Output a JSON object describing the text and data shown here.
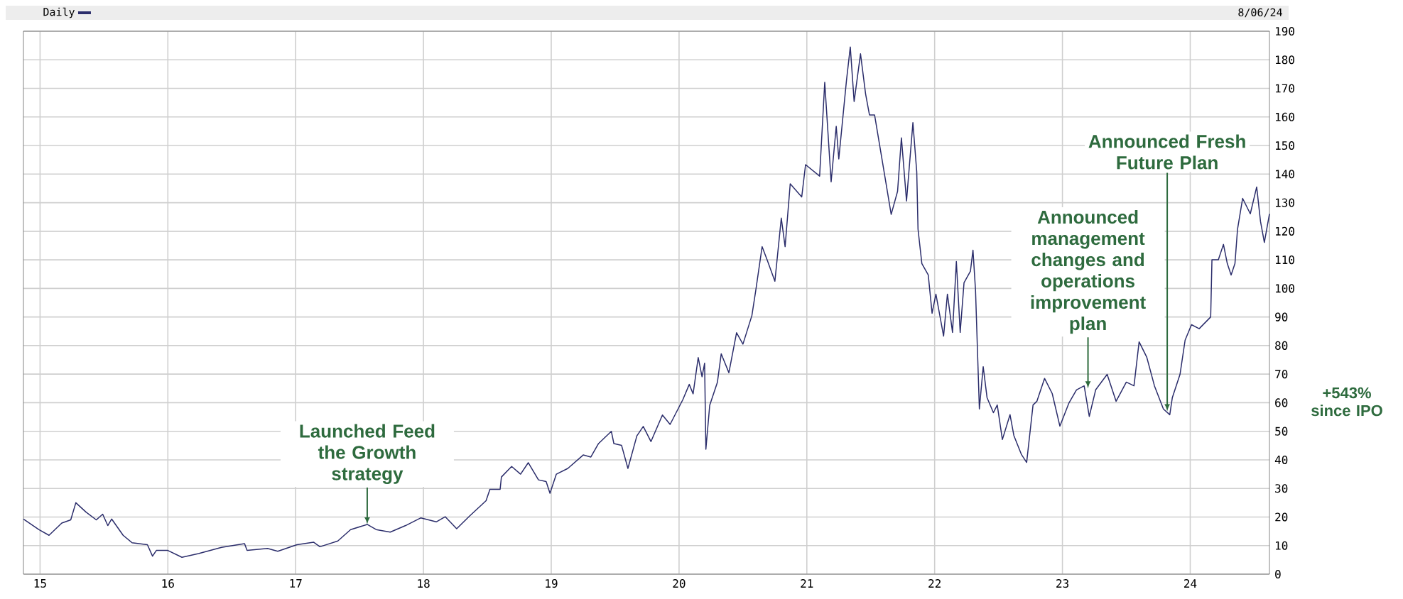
{
  "chart_data": {
    "type": "line",
    "title": "Daily",
    "annotations": [
      {
        "text": "Launched Feed the Growth strategy",
        "x": 2017.56,
        "y": 17.4
      },
      {
        "text": "Announced management changes and operations improvement plan",
        "x": 2023.2,
        "y": 65
      },
      {
        "text": "Announced Fresh Future Plan",
        "x": 2023.82,
        "y": 57
      },
      "+543% since IPO",
      "8/06/24"
    ],
    "x": [
      2014.87,
      2014.99,
      2015.07,
      2015.17,
      2015.24,
      2015.28,
      2015.36,
      2015.44,
      2015.49,
      2015.53,
      2015.56,
      2015.65,
      2015.72,
      2015.84,
      2015.88,
      2015.91,
      2016.0,
      2016.11,
      2016.24,
      2016.42,
      2016.6,
      2016.62,
      2016.78,
      2016.86,
      2017.01,
      2017.14,
      2017.19,
      2017.33,
      2017.43,
      2017.56,
      2017.63,
      2017.74,
      2017.86,
      2017.98,
      2018.1,
      2018.17,
      2018.26,
      2018.36,
      2018.49,
      2018.52,
      2018.6,
      2018.61,
      2018.69,
      2018.76,
      2018.82,
      2018.9,
      2018.96,
      2018.99,
      2019.04,
      2019.13,
      2019.25,
      2019.31,
      2019.37,
      2019.47,
      2019.49,
      2019.55,
      2019.6,
      2019.67,
      2019.72,
      2019.78,
      2019.87,
      2019.93,
      2020.03,
      2020.08,
      2020.11,
      2020.15,
      2020.18,
      2020.2,
      2020.21,
      2020.24,
      2020.3,
      2020.33,
      2020.39,
      2020.45,
      2020.5,
      2020.57,
      2020.6,
      2020.65,
      2020.69,
      2020.75,
      2020.8,
      2020.83,
      2020.87,
      2020.96,
      2020.99,
      2021.1,
      2021.14,
      2021.19,
      2021.23,
      2021.25,
      2021.31,
      2021.34,
      2021.37,
      2021.42,
      2021.46,
      2021.49,
      2021.53,
      2021.59,
      2021.66,
      2021.71,
      2021.74,
      2021.78,
      2021.83,
      2021.86,
      2021.87,
      2021.9,
      2021.95,
      2021.98,
      2022.01,
      2022.07,
      2022.1,
      2022.14,
      2022.17,
      2022.2,
      2022.23,
      2022.28,
      2022.3,
      2022.32,
      2022.35,
      2022.38,
      2022.41,
      2022.46,
      2022.49,
      2022.53,
      2022.59,
      2022.62,
      2022.68,
      2022.72,
      2022.77,
      2022.8,
      2022.86,
      2022.92,
      2022.98,
      2023.05,
      2023.11,
      2023.17,
      2023.21,
      2023.26,
      2023.35,
      2023.42,
      2023.5,
      2023.56,
      2023.6,
      2023.66,
      2023.72,
      2023.79,
      2023.84,
      2023.86,
      2023.92,
      2023.96,
      2024.01,
      2024.07,
      2024.16,
      2024.17,
      2024.22,
      2024.26,
      2024.29,
      2024.32,
      2024.35,
      2024.37,
      2024.41,
      2024.47,
      2024.52,
      2024.55,
      2024.58,
      2024.62
    ],
    "series": [
      {
        "color": "#2b2d6b",
        "values": [
          19.3,
          15.6,
          13.6,
          17.9,
          19.0,
          25.0,
          21.7,
          19.0,
          21.0,
          17.0,
          19.3,
          13.6,
          11.0,
          10.3,
          6.3,
          8.3,
          8.3,
          5.9,
          7.2,
          9.4,
          10.7,
          8.3,
          9.0,
          8.0,
          10.3,
          11.2,
          9.6,
          11.6,
          15.6,
          17.4,
          15.6,
          14.7,
          17.0,
          19.7,
          18.3,
          20.1,
          15.9,
          20.3,
          25.7,
          29.7,
          29.7,
          34.0,
          37.7,
          35.0,
          39.0,
          33.0,
          32.4,
          28.3,
          35.0,
          37.0,
          41.7,
          41.0,
          45.7,
          50.0,
          45.7,
          45.1,
          37.0,
          48.4,
          51.7,
          46.4,
          55.7,
          52.4,
          61.1,
          66.4,
          63.1,
          75.8,
          69.1,
          73.8,
          43.7,
          59.1,
          67.1,
          77.1,
          70.5,
          84.5,
          80.5,
          90.5,
          99.2,
          114.6,
          109.9,
          102.5,
          124.6,
          114.6,
          136.6,
          132.0,
          143.3,
          139.3,
          172.1,
          137.3,
          156.7,
          145.3,
          172.7,
          184.5,
          165.4,
          182.1,
          168.0,
          160.7,
          160.7,
          144.7,
          125.9,
          134.0,
          152.7,
          130.6,
          158.0,
          140.8,
          120.7,
          108.7,
          104.7,
          91.3,
          98.0,
          83.3,
          98.0,
          84.6,
          109.4,
          84.6,
          102.0,
          106.0,
          113.4,
          99.3,
          57.8,
          72.6,
          61.8,
          56.5,
          59.2,
          47.1,
          55.8,
          48.5,
          41.8,
          39.1,
          59.2,
          60.5,
          68.5,
          63.2,
          51.8,
          59.8,
          64.5,
          65.9,
          55.2,
          64.5,
          69.9,
          60.5,
          67.2,
          65.9,
          81.3,
          75.9,
          65.9,
          57.8,
          55.8,
          61.8,
          69.9,
          81.9,
          87.3,
          85.9,
          90.0,
          110.0,
          110.0,
          115.4,
          108.7,
          104.7,
          108.7,
          120.7,
          131.5,
          126.1,
          135.5,
          123.4,
          116.1,
          126.1
        ]
      }
    ],
    "xlim": [
      2014.87,
      2024.62
    ],
    "xticks": [
      {
        "value": 2015,
        "label": "15"
      },
      {
        "value": 2016,
        "label": "16"
      },
      {
        "value": 2017,
        "label": "17"
      },
      {
        "value": 2018,
        "label": "18"
      },
      {
        "value": 2019,
        "label": "19"
      },
      {
        "value": 2020,
        "label": "20"
      },
      {
        "value": 2021,
        "label": "21"
      },
      {
        "value": 2022,
        "label": "22"
      },
      {
        "value": 2023,
        "label": "23"
      },
      {
        "value": 2024,
        "label": "24"
      }
    ],
    "ylim": [
      0,
      190
    ],
    "yticks": [
      0,
      10,
      20,
      30,
      40,
      50,
      60,
      70,
      80,
      90,
      100,
      110,
      120,
      130,
      140,
      150,
      160,
      170,
      180,
      190
    ],
    "grid": true
  }
}
